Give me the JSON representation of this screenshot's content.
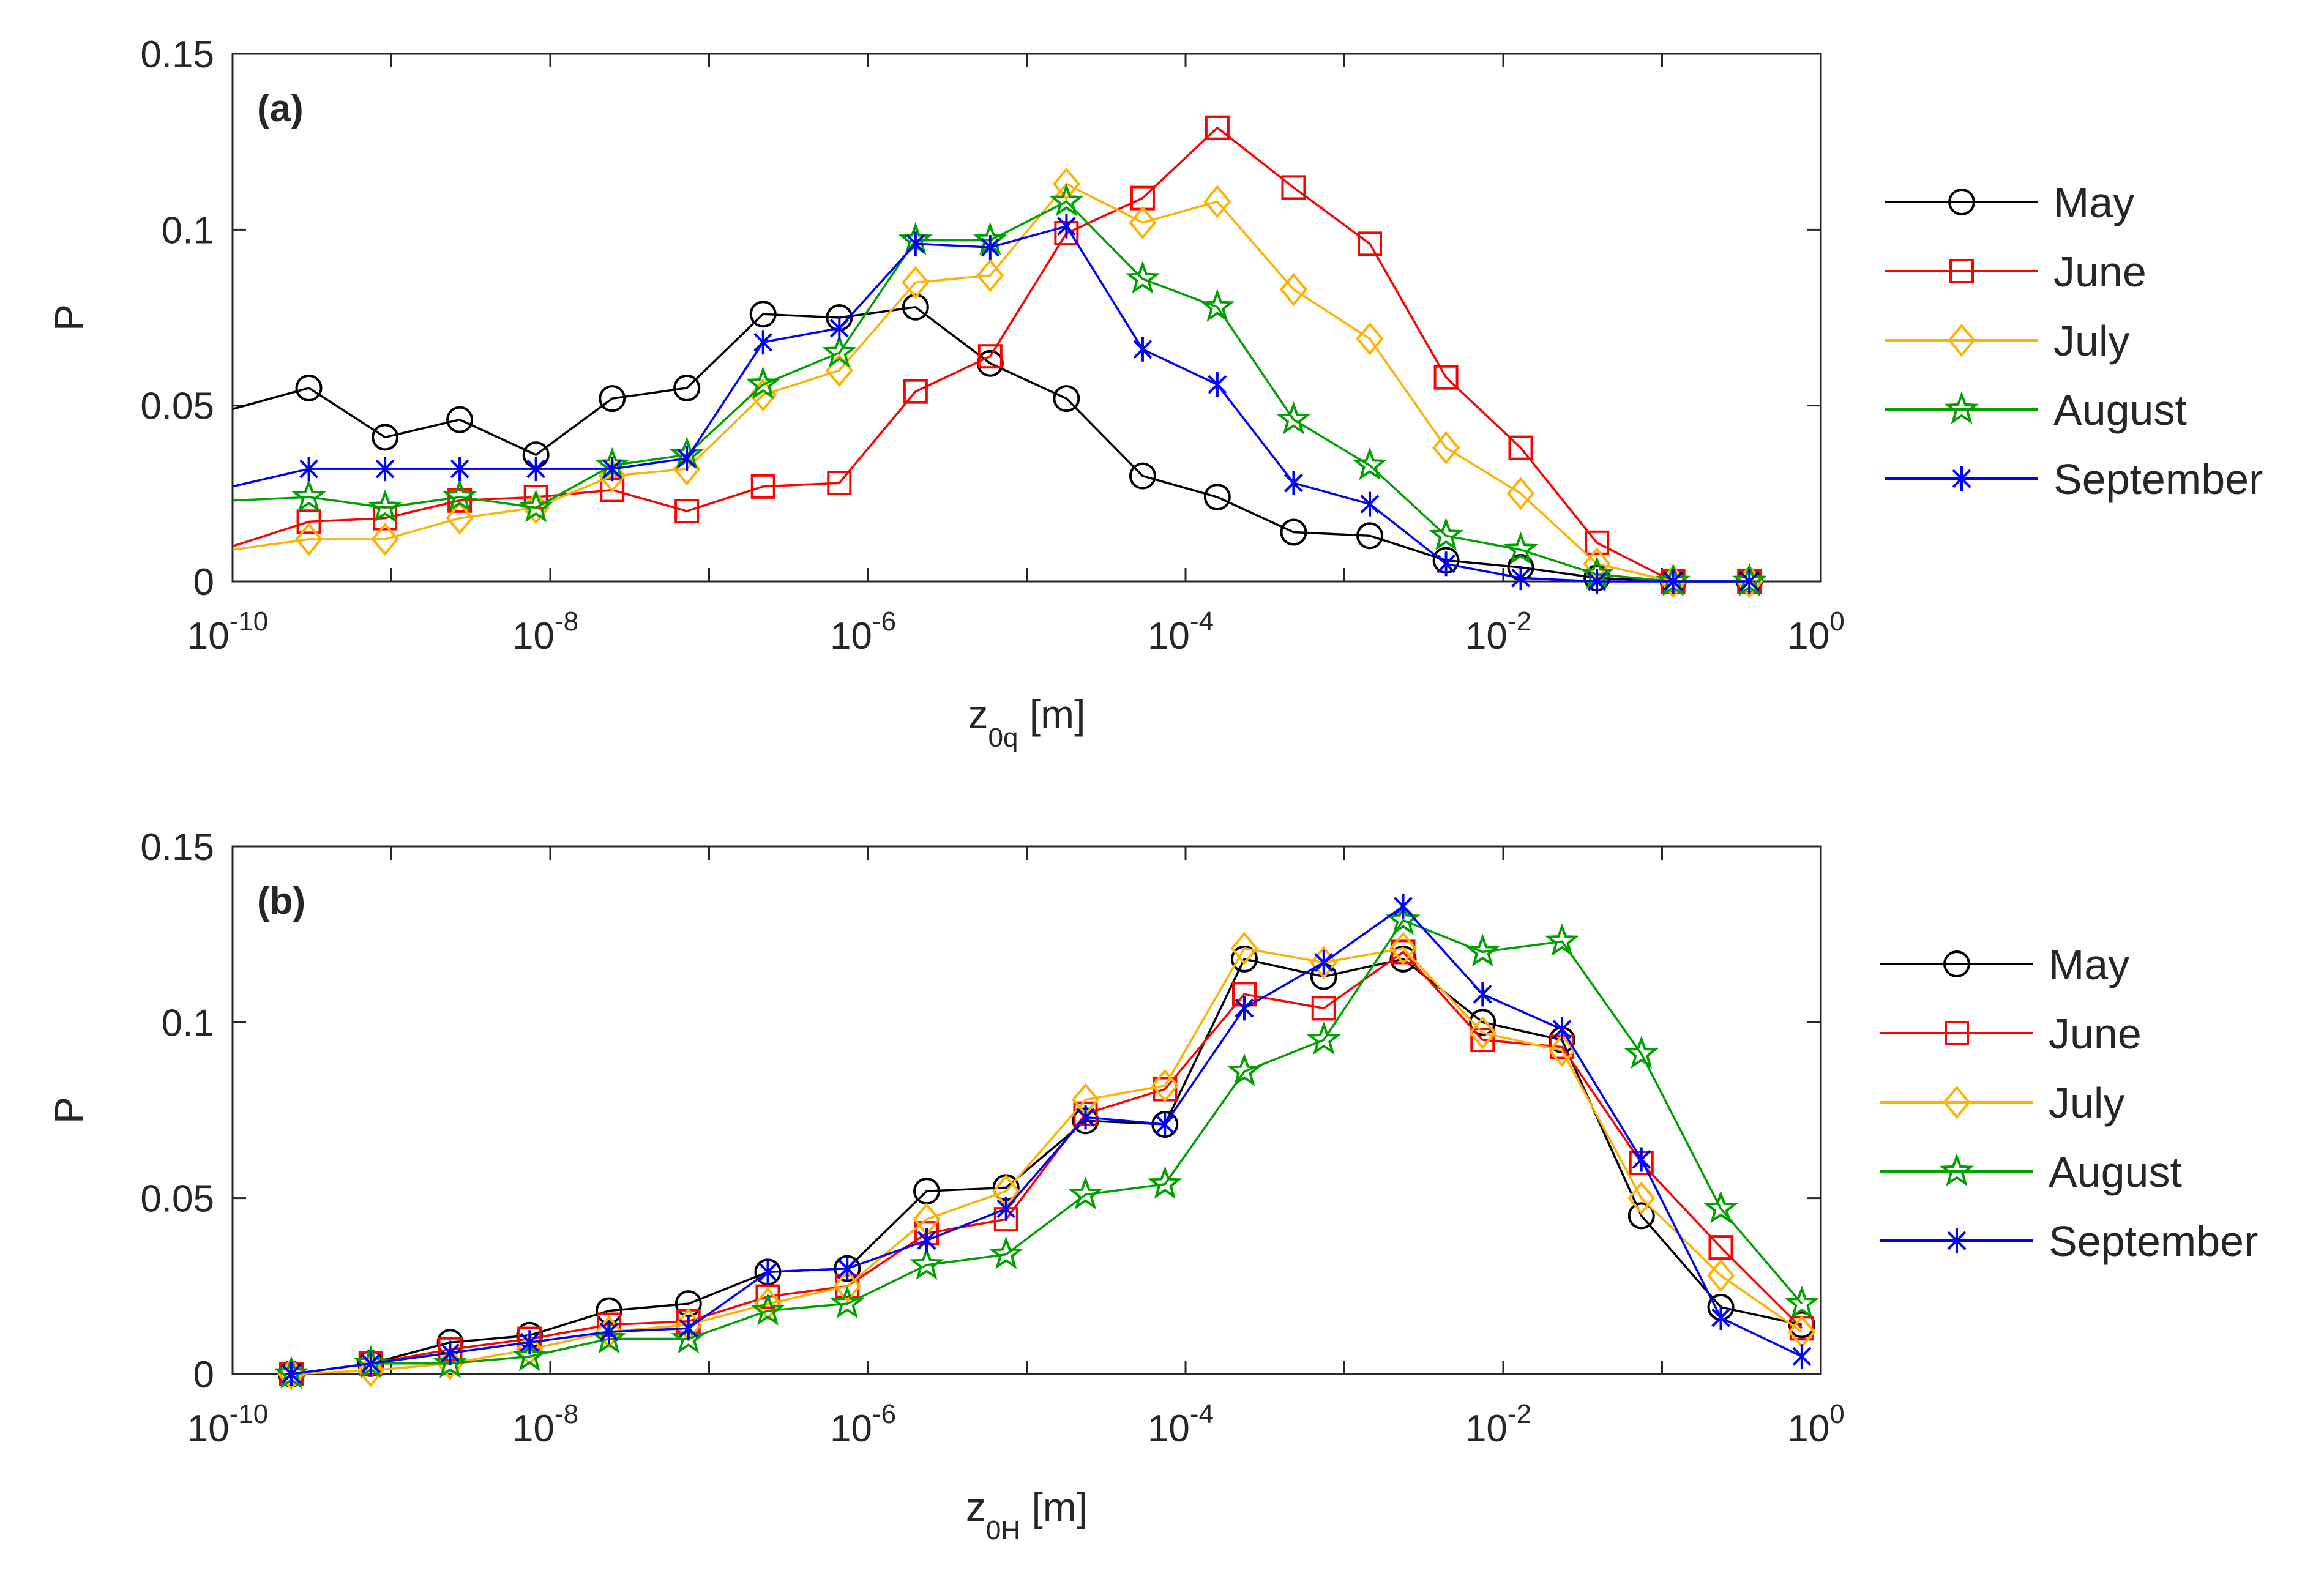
{
  "chart_data": [
    {
      "type": "line",
      "panel_label": "(a)",
      "title": "",
      "xlabel": {
        "base": "z",
        "sub": "0q",
        "unit": "[m]"
      },
      "ylabel": "P",
      "xscale": "log",
      "x_exponent_range": [
        -10,
        0
      ],
      "ylim": [
        0,
        0.15
      ],
      "ytick_labels": [
        "0",
        "0.05",
        "0.1",
        "0.15"
      ],
      "xtick_labels": [
        {
          "base": "10",
          "exp": "-10"
        },
        {
          "base": "10",
          "exp": "-8"
        },
        {
          "base": "10",
          "exp": "-6"
        },
        {
          "base": "10",
          "exp": "-4"
        },
        {
          "base": "10",
          "exp": "-2"
        },
        {
          "base": "10",
          "exp": "0"
        }
      ],
      "x_log10": [
        -10,
        -9.52,
        -9.04,
        -8.57,
        -8.09,
        -7.61,
        -7.14,
        -6.66,
        -6.18,
        -5.7,
        -5.23,
        -4.75,
        -4.27,
        -3.8,
        -3.32,
        -2.84,
        -2.36,
        -1.89,
        -1.41,
        -0.93,
        -0.45,
        0
      ],
      "series": [
        {
          "name": "May",
          "color": "#000000",
          "marker": "circle",
          "values": [
            0.049,
            0.055,
            0.041,
            0.046,
            0.036,
            0.052,
            0.055,
            0.076,
            0.075,
            0.078,
            0.062,
            0.052,
            0.03,
            0.024,
            0.014,
            0.013,
            0.006,
            0.004,
            0.001,
            0.0,
            0.0,
            null
          ]
        },
        {
          "name": "June",
          "color": "#FF0000",
          "marker": "square",
          "values": [
            0.01,
            0.017,
            0.018,
            0.023,
            0.024,
            0.026,
            0.02,
            0.027,
            0.028,
            0.054,
            0.064,
            0.099,
            0.109,
            0.129,
            0.112,
            0.096,
            0.058,
            0.038,
            0.011,
            0.0,
            0.0,
            null
          ]
        },
        {
          "name": "July",
          "color": "#FFB000",
          "marker": "diamond",
          "values": [
            0.009,
            0.012,
            0.012,
            0.018,
            0.021,
            0.03,
            0.032,
            0.053,
            0.06,
            0.085,
            0.087,
            0.113,
            0.102,
            0.108,
            0.083,
            0.069,
            0.038,
            0.025,
            0.005,
            0.0,
            0.0,
            null
          ]
        },
        {
          "name": "August",
          "color": "#00A000",
          "marker": "star",
          "values": [
            0.023,
            0.024,
            0.021,
            0.024,
            0.021,
            0.033,
            0.036,
            0.056,
            0.065,
            0.097,
            0.097,
            0.108,
            0.086,
            0.078,
            0.046,
            0.033,
            0.013,
            0.009,
            0.002,
            0.0,
            0.0,
            null
          ]
        },
        {
          "name": "September",
          "color": "#0000FF",
          "marker": "asterisk",
          "values": [
            0.027,
            0.032,
            0.032,
            0.032,
            0.032,
            0.032,
            0.035,
            0.068,
            0.072,
            0.096,
            0.095,
            0.101,
            0.066,
            0.056,
            0.028,
            0.022,
            0.005,
            0.001,
            0.0,
            0.0,
            0.0,
            null
          ]
        }
      ],
      "legend": [
        "May",
        "June",
        "July",
        "August",
        "September"
      ]
    },
    {
      "type": "line",
      "panel_label": "(b)",
      "title": "",
      "xlabel": {
        "base": "z",
        "sub": "0H",
        "unit": "[m]"
      },
      "ylabel": "P",
      "xscale": "log",
      "x_exponent_range": [
        -10,
        0
      ],
      "ylim": [
        0,
        0.15
      ],
      "ytick_labels": [
        "0",
        "0.05",
        "0.1",
        "0.15"
      ],
      "xtick_labels": [
        {
          "base": "10",
          "exp": "-10"
        },
        {
          "base": "10",
          "exp": "-8"
        },
        {
          "base": "10",
          "exp": "-6"
        },
        {
          "base": "10",
          "exp": "-4"
        },
        {
          "base": "10",
          "exp": "-2"
        },
        {
          "base": "10",
          "exp": "0"
        }
      ],
      "x_log10": [
        -9.63,
        -9.13,
        -8.63,
        -8.13,
        -7.63,
        -7.13,
        -6.63,
        -6.13,
        -5.63,
        -5.13,
        -4.63,
        -4.13,
        -3.63,
        -3.13,
        -2.63,
        -2.13,
        -1.63,
        -1.13,
        -0.63,
        -0.12
      ],
      "series": [
        {
          "name": "May",
          "color": "#000000",
          "marker": "circle",
          "values": [
            0.0,
            0.003,
            0.009,
            0.011,
            0.018,
            0.02,
            0.029,
            0.03,
            0.052,
            0.053,
            0.072,
            0.071,
            0.118,
            0.113,
            0.118,
            0.1,
            0.095,
            0.045,
            0.019,
            0.014
          ]
        },
        {
          "name": "June",
          "color": "#FF0000",
          "marker": "square",
          "values": [
            0.0,
            0.003,
            0.007,
            0.01,
            0.014,
            0.015,
            0.022,
            0.025,
            0.04,
            0.044,
            0.074,
            0.081,
            0.108,
            0.104,
            0.12,
            0.095,
            0.093,
            0.06,
            0.036,
            0.013
          ]
        },
        {
          "name": "July",
          "color": "#FFB000",
          "marker": "diamond",
          "values": [
            0.0,
            0.001,
            0.003,
            0.007,
            0.012,
            0.014,
            0.02,
            0.025,
            0.044,
            0.052,
            0.078,
            0.082,
            0.121,
            0.117,
            0.121,
            0.097,
            0.092,
            0.05,
            0.028,
            0.012
          ]
        },
        {
          "name": "August",
          "color": "#00A000",
          "marker": "star",
          "values": [
            0.0,
            0.003,
            0.003,
            0.005,
            0.01,
            0.01,
            0.018,
            0.02,
            0.031,
            0.034,
            0.051,
            0.054,
            0.086,
            0.095,
            0.129,
            0.12,
            0.123,
            0.091,
            0.047,
            0.02
          ]
        },
        {
          "name": "September",
          "color": "#0000FF",
          "marker": "asterisk",
          "values": [
            0.0,
            0.003,
            0.006,
            0.009,
            0.012,
            0.013,
            0.029,
            0.03,
            0.038,
            0.047,
            0.073,
            0.071,
            0.104,
            0.117,
            0.133,
            0.108,
            0.098,
            0.061,
            0.016,
            0.005
          ]
        }
      ],
      "legend": [
        "May",
        "June",
        "July",
        "August",
        "September"
      ]
    }
  ]
}
